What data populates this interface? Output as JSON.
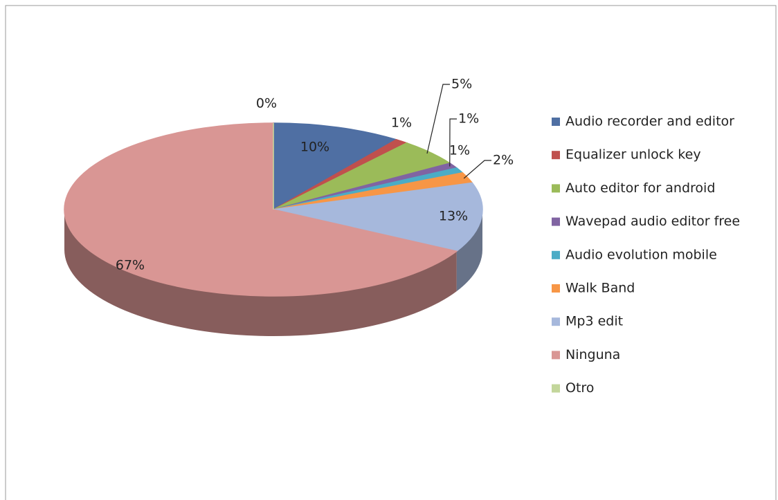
{
  "chart_data": {
    "type": "pie",
    "categories": [
      "Audio recorder and editor",
      "Equalizer unlock key",
      "Auto editor for android",
      "Wavepad audio editor free",
      "Audio evolution mobile",
      "Walk Band",
      "Mp3 edit",
      "Ninguna",
      "Otro"
    ],
    "values": [
      10,
      1,
      5,
      1,
      1,
      2,
      13,
      67,
      0
    ],
    "value_labels": [
      "10%",
      "1%",
      "5%",
      "1%",
      "1%",
      "2%",
      "13%",
      "67%",
      "0%"
    ],
    "colors": [
      "#4f6fa3",
      "#c0504d",
      "#9bbb59",
      "#8064a2",
      "#4bacc6",
      "#f79646",
      "#a6b8dc",
      "#d99694",
      "#c3d69b"
    ],
    "legend": "right"
  }
}
